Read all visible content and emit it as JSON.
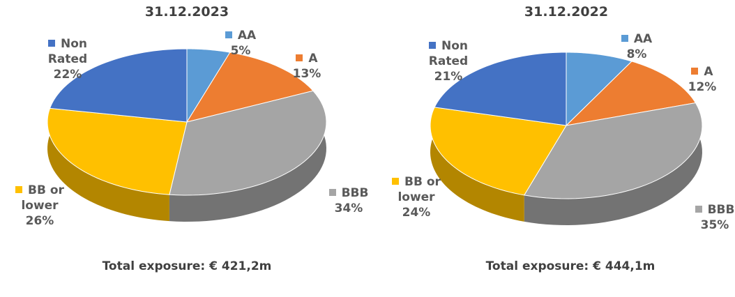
{
  "chart_data": [
    {
      "type": "pie",
      "title": "31.12.2023",
      "categories": [
        "AA",
        "A",
        "BBB",
        "BB or lower",
        "Non Rated"
      ],
      "values": [
        5,
        13,
        34,
        26,
        22
      ],
      "value_labels": [
        "5%",
        "13%",
        "34%",
        "26%",
        "22%"
      ],
      "colors": [
        "#5b9bd5",
        "#ed7d31",
        "#a5a5a5",
        "#ffc000",
        "#4472c4"
      ],
      "footer": "Total exposure: € 421,2m"
    },
    {
      "type": "pie",
      "title": "31.12.2022",
      "categories": [
        "AA",
        "A",
        "BBB",
        "BB or lower",
        "Non Rated"
      ],
      "values": [
        8,
        12,
        35,
        24,
        21
      ],
      "value_labels": [
        "8%",
        "12%",
        "35%",
        "24%",
        "21%"
      ],
      "colors": [
        "#5b9bd5",
        "#ed7d31",
        "#a5a5a5",
        "#ffc000",
        "#4472c4"
      ],
      "footer": "Total exposure: € 444,1m"
    }
  ]
}
